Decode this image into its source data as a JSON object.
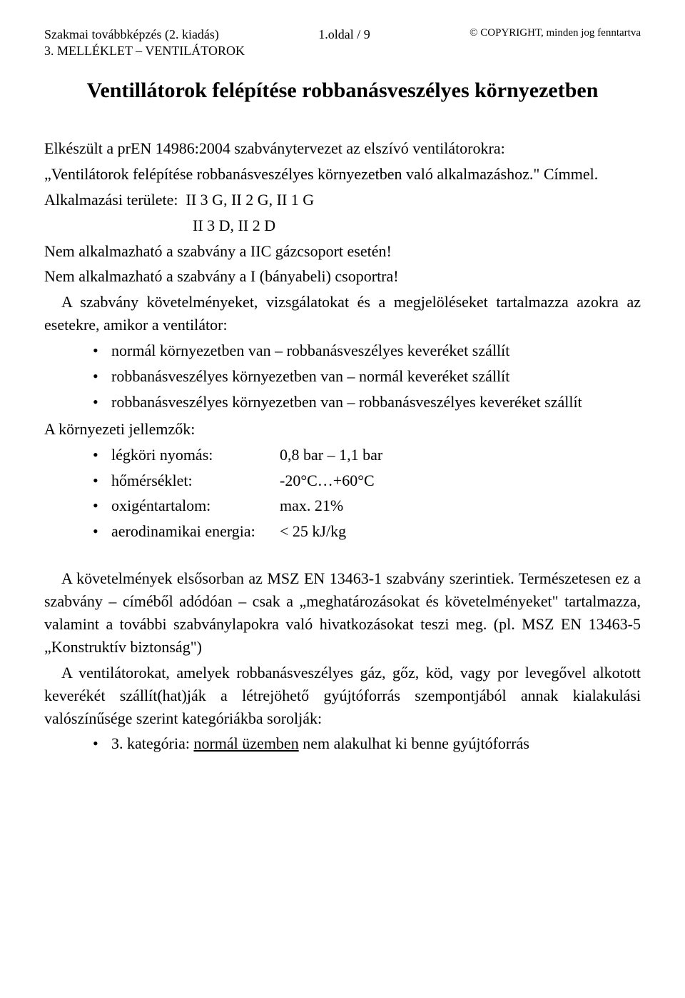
{
  "header": {
    "left": "Szakmai továbbképzés (2. kiadás)",
    "center": "1.oldal / 9",
    "right": "© COPYRIGHT, minden jog fenntartva",
    "section": "3. MELLÉKLET – VENTILÁTOROK"
  },
  "title": "Ventillátorok felépítése robbanásveszélyes környezetben",
  "intro": {
    "line1": "Elkészült a prEN 14986:2004 szabványtervezet az elszívó ventilátorokra:",
    "line2": "„Ventilátorok felépítése robbanásveszélyes környezetben való alkalmazáshoz.\" Címmel.",
    "scope_label": "Alkalmazási területe:",
    "scope_g": "II 3 G, II 2 G, II 1 G",
    "scope_d": "II 3 D, II 2 D",
    "not_iic": "Nem alkalmazható a szabvány a IIC gázcsoport esetén!",
    "not_i": "Nem alkalmazható a szabvány a I (bányabeli) csoportra!",
    "cases_intro": "A szabvány követelményeket, vizsgálatokat és a megjelöléseket tartalmazza azokra az esetekre, amikor a ventilátor:"
  },
  "cases": [
    "normál környezetben van – robbanásveszélyes keveréket szállít",
    "robbanásveszélyes környezetben van – normál keveréket szállít",
    "robbanásveszélyes környezetben van – robbanásveszélyes keveréket szállít"
  ],
  "env_label": "A környezeti jellemzők:",
  "env_params": [
    {
      "label": "légköri nyomás:",
      "value": "0,8 bar – 1,1 bar"
    },
    {
      "label": "hőmérséklet:",
      "value": "-20°C…+60°C"
    },
    {
      "label": "oxigéntartalom:",
      "value": "max. 21%"
    },
    {
      "label": "aerodinamikai energia:",
      "value": "< 25 kJ/kg"
    }
  ],
  "req_para": "A követelmények elsősorban az MSZ EN 13463-1 szabvány szerintiek. Természetesen ez a szabvány – címéből adódóan – csak a „meghatározásokat és követelményeket\" tartalmazza, valamint a további szabványlapokra való hivatkozásokat teszi meg. (pl. MSZ EN 13463-5 „Konstruktív biztonság\")",
  "vent_para": "A ventilátorokat, amelyek robbanásveszélyes gáz, gőz, köd, vagy por levegővel alkotott keverékét szállít(hat)ják a létrejöhető gyújtóforrás szempontjából annak kialakulási valószínűsége szerint kategóriákba sorolják:",
  "category": {
    "prefix": "3. kategória: ",
    "underlined": "normál üzemben",
    "suffix": " nem alakulhat ki benne gyújtóforrás"
  }
}
